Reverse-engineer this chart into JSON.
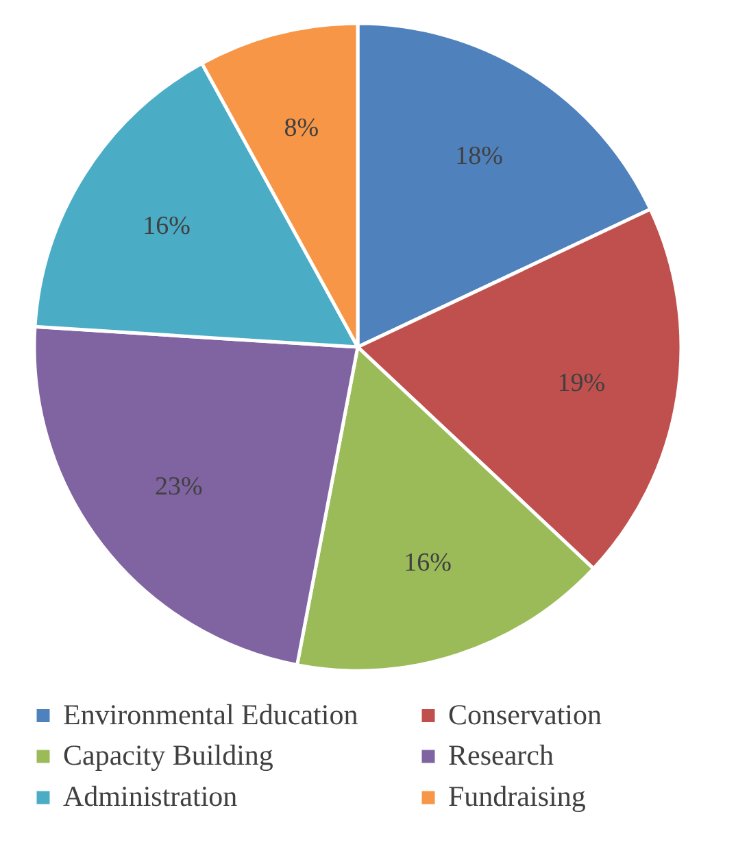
{
  "chart_data": {
    "type": "pie",
    "categories": [
      "Environmental Education",
      "Conservation",
      "Capacity Building",
      "Research",
      "Administration",
      "Fundraising"
    ],
    "values": [
      18,
      19,
      16,
      23,
      16,
      8
    ],
    "colors": [
      "#4f81bd",
      "#c0504d",
      "#9bbb59",
      "#8064a2",
      "#4bacc6",
      "#f79646"
    ],
    "value_labels": [
      "18%",
      "19%",
      "16%",
      "23%",
      "16%",
      "8%"
    ],
    "legend": "bottom"
  }
}
